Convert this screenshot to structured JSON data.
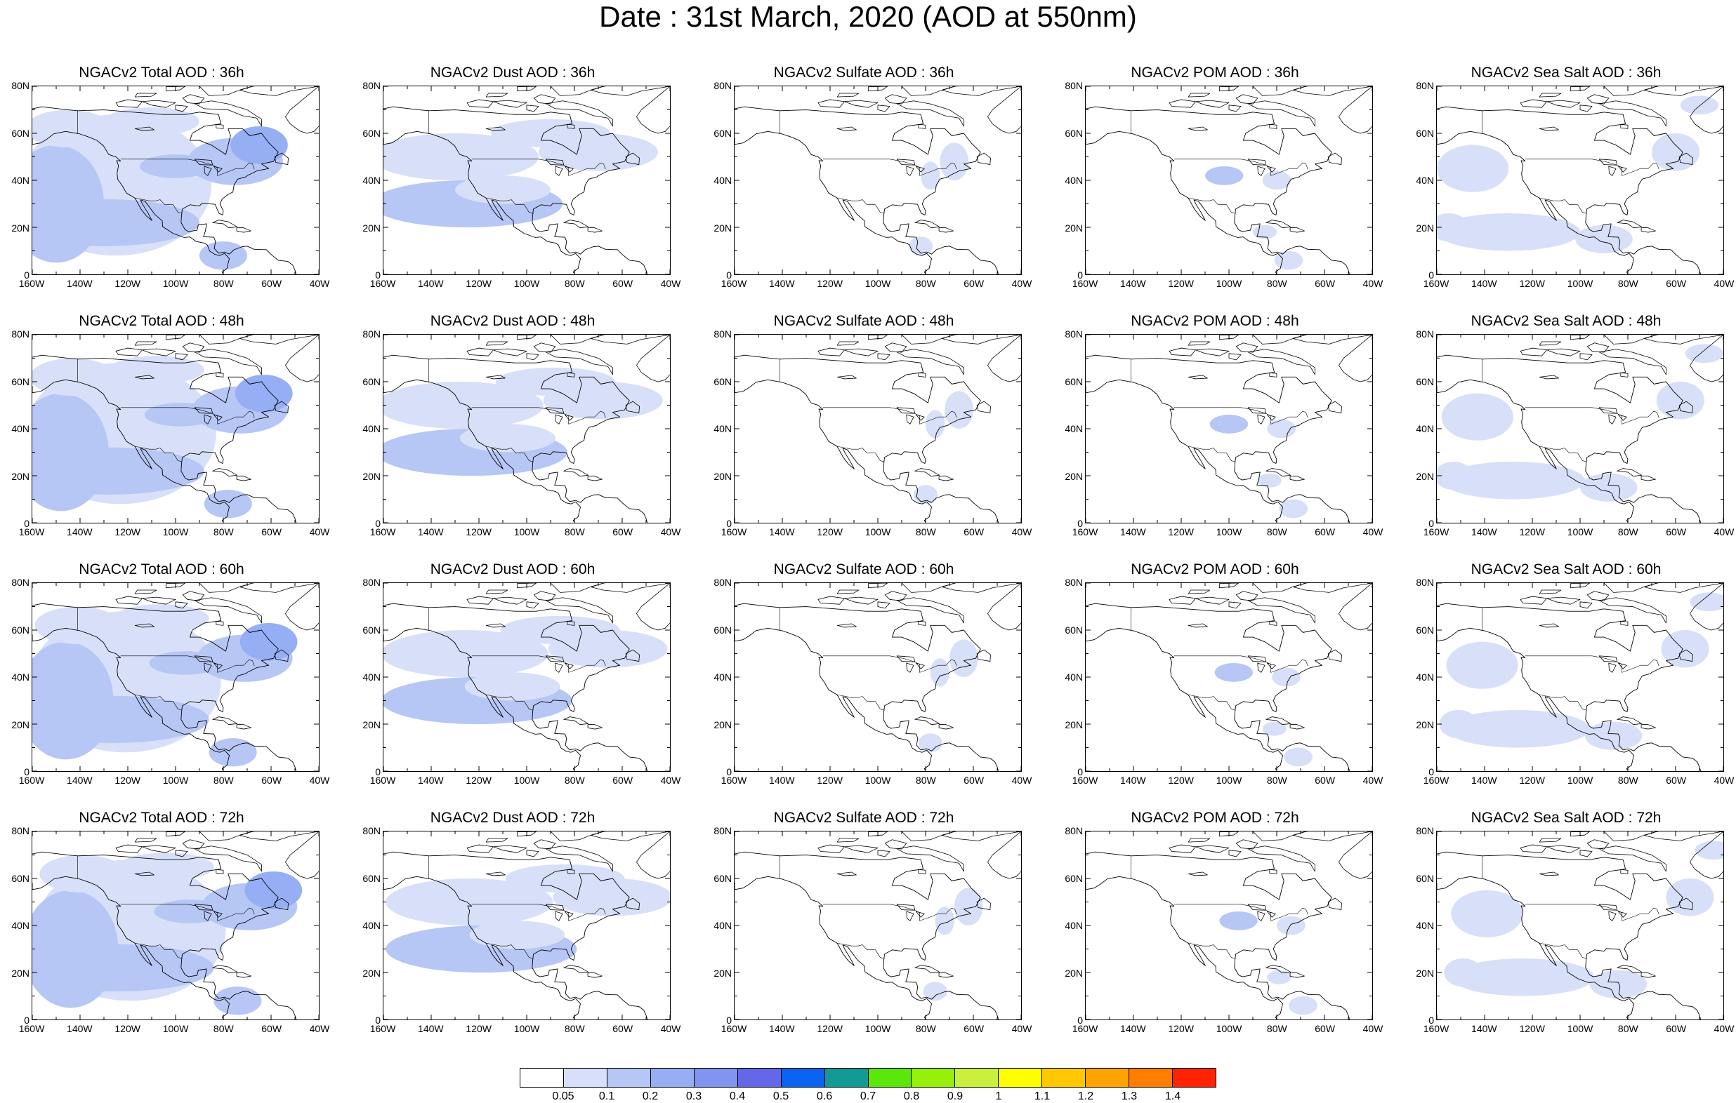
{
  "figure_title": "Date : 31st March, 2020 (AOD at 550nm)",
  "panels": [
    {
      "title": "NGACv2 Total AOD : 36h",
      "species": "total"
    },
    {
      "title": "NGACv2 Dust AOD : 36h",
      "species": "dust"
    },
    {
      "title": "NGACv2 Sulfate AOD : 36h",
      "species": "sulfate"
    },
    {
      "title": "NGACv2 POM AOD : 36h",
      "species": "pom"
    },
    {
      "title": "NGACv2 Sea Salt AOD : 36h",
      "species": "seasalt"
    },
    {
      "title": "NGACv2 Total AOD : 48h",
      "species": "total"
    },
    {
      "title": "NGACv2 Dust AOD : 48h",
      "species": "dust"
    },
    {
      "title": "NGACv2 Sulfate AOD : 48h",
      "species": "sulfate"
    },
    {
      "title": "NGACv2 POM AOD : 48h",
      "species": "pom"
    },
    {
      "title": "NGACv2 Sea Salt AOD : 48h",
      "species": "seasalt"
    },
    {
      "title": "NGACv2 Total AOD : 60h",
      "species": "total"
    },
    {
      "title": "NGACv2 Dust AOD : 60h",
      "species": "dust"
    },
    {
      "title": "NGACv2 Sulfate AOD : 60h",
      "species": "sulfate"
    },
    {
      "title": "NGACv2 POM AOD : 60h",
      "species": "pom"
    },
    {
      "title": "NGACv2 Sea Salt AOD : 60h",
      "species": "seasalt"
    },
    {
      "title": "NGACv2 Total AOD : 72h",
      "species": "total"
    },
    {
      "title": "NGACv2 Dust AOD : 72h",
      "species": "dust"
    },
    {
      "title": "NGACv2 Sulfate AOD : 72h",
      "species": "sulfate"
    },
    {
      "title": "NGACv2 POM AOD : 72h",
      "species": "pom"
    },
    {
      "title": "NGACv2 Sea Salt  AOD : 72h",
      "species": "seasalt"
    }
  ],
  "x_tick_labels": [
    "160W",
    "140W",
    "120W",
    "100W",
    "80W",
    "60W",
    "40W"
  ],
  "y_tick_labels": [
    "80N",
    "60N",
    "40N",
    "20N",
    "0"
  ],
  "colorbar": {
    "labels": [
      "0.05",
      "0.1",
      "0.2",
      "0.3",
      "0.4",
      "0.5",
      "0.6",
      "0.7",
      "0.8",
      "0.9",
      "1",
      "1.1",
      "1.2",
      "1.3",
      "1.4"
    ],
    "colors": [
      "#ffffff",
      "#d7e0f8",
      "#b6c6f5",
      "#96aef4",
      "#7f95f0",
      "#6468e8",
      "#0a64f2",
      "#129a96",
      "#5ce70a",
      "#96f00a",
      "#c8f03c",
      "#ffff00",
      "#ffc800",
      "#ffa300",
      "#ff7d00",
      "#ff2300"
    ]
  }
}
